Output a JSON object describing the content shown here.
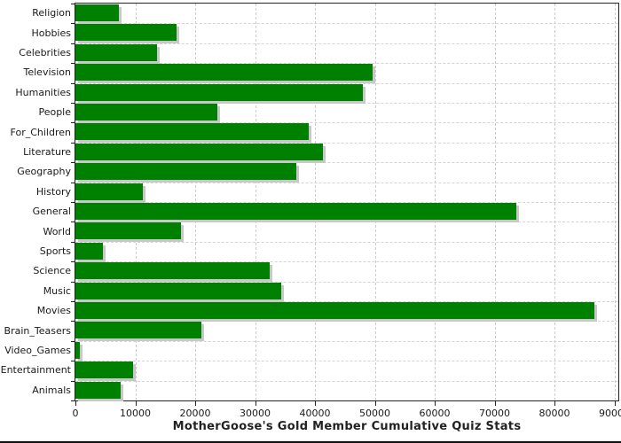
{
  "chart": {
    "title": "MotherGoose's Gold Member Cumulative Quiz Stats"
  },
  "chart_data": {
    "type": "bar",
    "orientation": "horizontal",
    "title": "MotherGoose's Gold Member Cumulative Quiz Stats",
    "xlabel": "",
    "ylabel": "",
    "categories": [
      "Religion",
      "Hobbies",
      "Celebrities",
      "Television",
      "Humanities",
      "People",
      "For_Children",
      "Literature",
      "Geography",
      "History",
      "General",
      "World",
      "Sports",
      "Science",
      "Music",
      "Movies",
      "Brain_Teasers",
      "Video_Games",
      "Entertainment",
      "Animals"
    ],
    "values": [
      7300,
      16900,
      13700,
      49700,
      48000,
      23700,
      38900,
      41400,
      36900,
      11300,
      73600,
      17600,
      4600,
      32500,
      34400,
      86600,
      21000,
      700,
      9600,
      7600
    ],
    "xlim": [
      0,
      90000
    ],
    "xticks": [
      0,
      10000,
      20000,
      30000,
      40000,
      50000,
      60000,
      70000,
      80000,
      90000
    ],
    "grid": "dashed",
    "legend_position": "none",
    "bar_color": "#008000",
    "bar_shadow_color": "#c8c8c8",
    "grid_color": "#cccccc",
    "axis_color": "#222222",
    "text_color": "#1a1a1a"
  }
}
